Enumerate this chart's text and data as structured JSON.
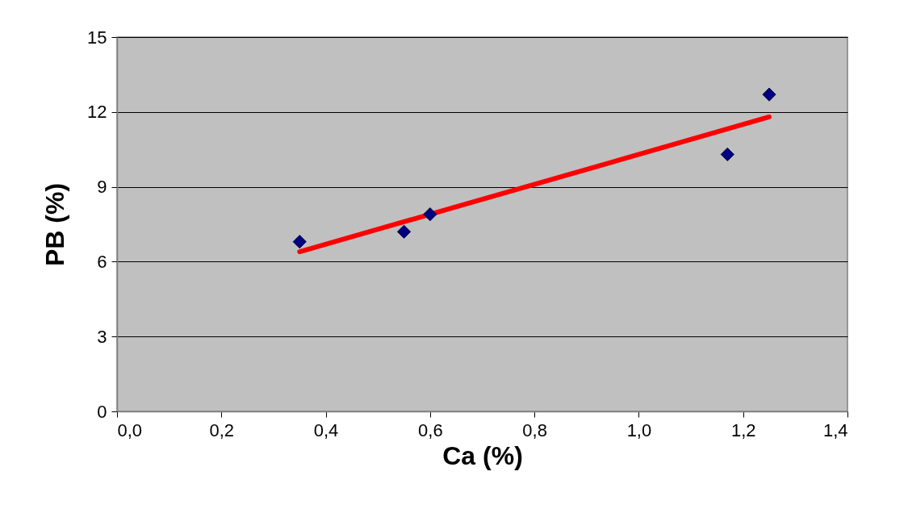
{
  "chart_data": {
    "type": "scatter",
    "xlabel": "Ca (%)",
    "ylabel": "PB (%)",
    "xlim": [
      0,
      1.4
    ],
    "ylim": [
      0,
      15
    ],
    "xticks": [
      {
        "value": 0,
        "label": "0,0"
      },
      {
        "value": 0.2,
        "label": "0,2"
      },
      {
        "value": 0.4,
        "label": "0,4"
      },
      {
        "value": 0.6,
        "label": "0,6"
      },
      {
        "value": 0.8,
        "label": "0,8"
      },
      {
        "value": 1.0,
        "label": "1,0"
      },
      {
        "value": 1.2,
        "label": "1,2"
      },
      {
        "value": 1.4,
        "label": "1,4"
      }
    ],
    "yticks": [
      0,
      3,
      6,
      9,
      12,
      15
    ],
    "grid": "y",
    "series": [
      {
        "color": "#000080",
        "marker": "diamond",
        "x": [
          0.35,
          0.55,
          0.6,
          1.17,
          1.25
        ],
        "values": [
          6.8,
          7.2,
          7.9,
          10.3,
          12.7
        ]
      },
      {
        "type": "line",
        "color": "#ff0000",
        "marker": "none",
        "x": [
          0.35,
          1.25
        ],
        "values": [
          6.4,
          11.8
        ]
      }
    ]
  }
}
